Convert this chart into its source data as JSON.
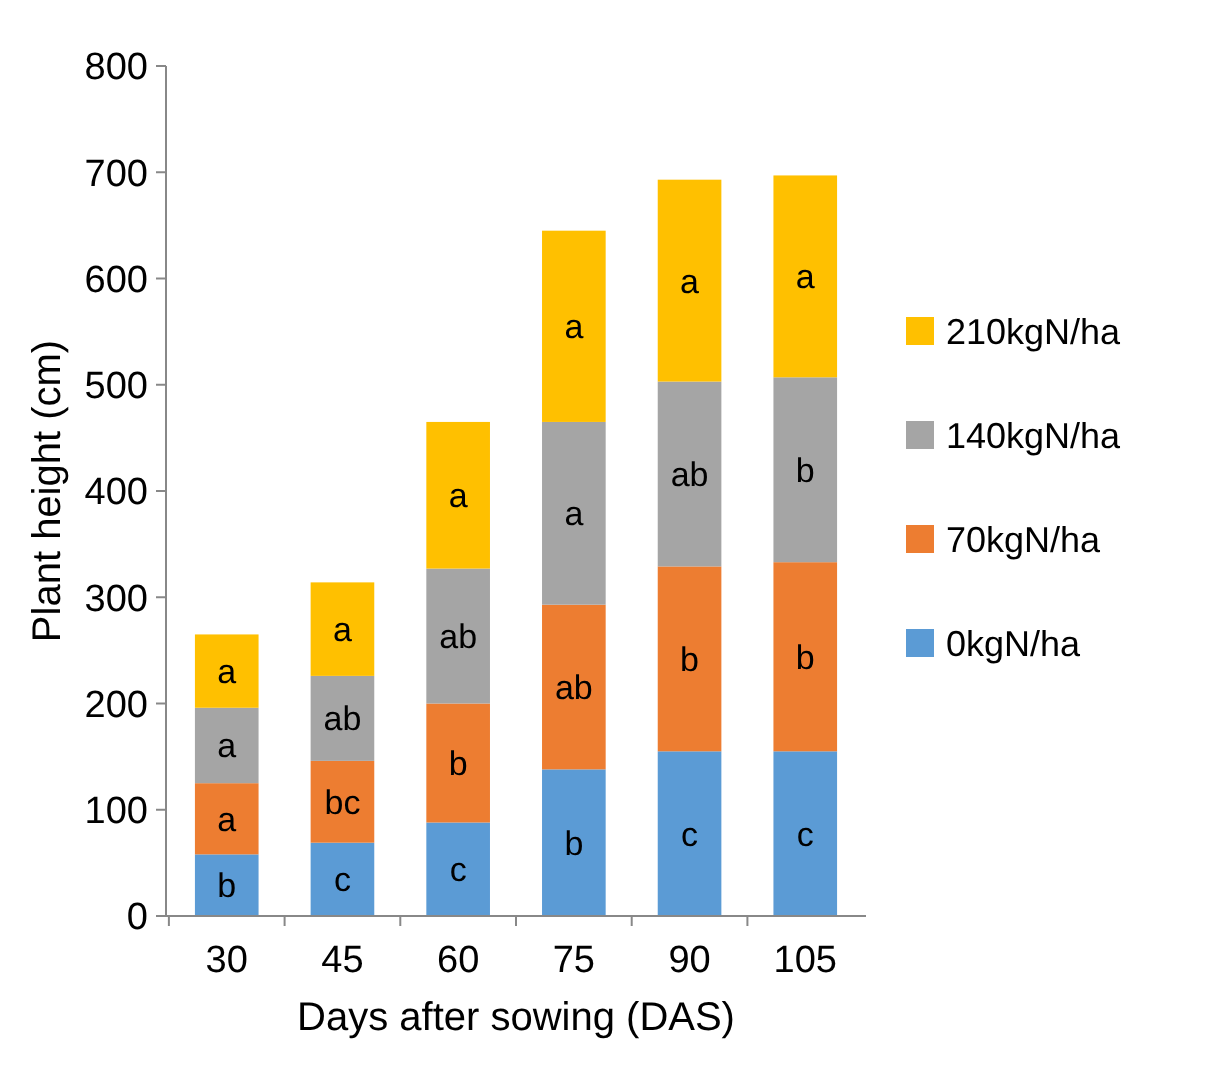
{
  "chart_data": {
    "type": "bar",
    "stacked": true,
    "xlabel": "Days after sowing (DAS)",
    "ylabel": "Plant height (cm)",
    "categories": [
      "30",
      "45",
      "60",
      "75",
      "90",
      "105"
    ],
    "ylim": [
      0,
      800
    ],
    "yticks": [
      0,
      100,
      200,
      300,
      400,
      500,
      600,
      700,
      800
    ],
    "grid": false,
    "legend": "right",
    "series": [
      {
        "name": "0kgN/ha",
        "color": "#5b9bd5",
        "values": [
          58,
          69,
          88,
          138,
          155,
          155
        ],
        "value_labels": [
          "b",
          "c",
          "c",
          "b",
          "c",
          "c"
        ]
      },
      {
        "name": "70kgN/ha",
        "color": "#ed7d31",
        "values": [
          67,
          77,
          112,
          155,
          174,
          178
        ],
        "value_labels": [
          "a",
          "bc",
          "b",
          "ab",
          "b",
          "b"
        ]
      },
      {
        "name": "140kgN/ha",
        "color": "#a5a5a5",
        "values": [
          71,
          80,
          127,
          172,
          174,
          174
        ],
        "value_labels": [
          "a",
          "ab",
          "ab",
          "a",
          "ab",
          "b"
        ]
      },
      {
        "name": "210kgN/ha",
        "color": "#ffc000",
        "values": [
          69,
          88,
          138,
          180,
          190,
          190
        ],
        "value_labels": [
          "a",
          "a",
          "a",
          "a",
          "a",
          "a"
        ]
      }
    ]
  }
}
